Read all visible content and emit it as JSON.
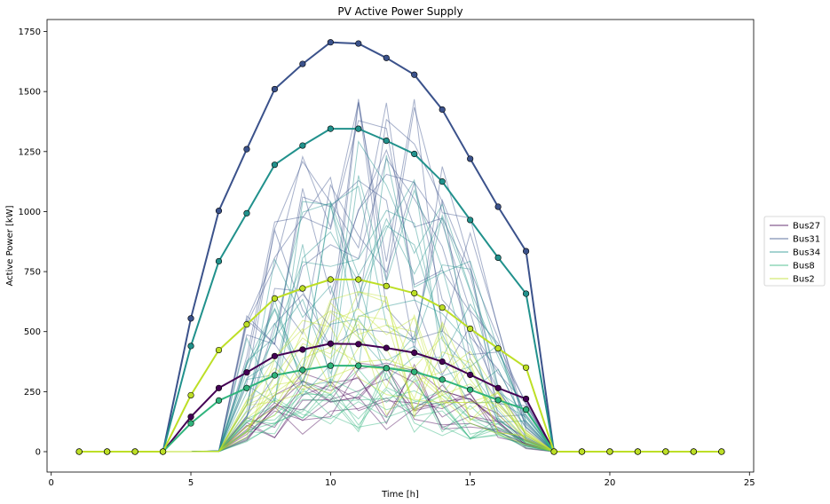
{
  "chart_data": {
    "type": "line",
    "title": "PV Active Power Supply",
    "xlabel": "Time [h]",
    "ylabel": "Active Power [kW]",
    "xlim": [
      -0.15,
      25.15
    ],
    "ylim": [
      -85,
      1800
    ],
    "xticks": [
      0,
      5,
      10,
      15,
      20,
      25
    ],
    "yticks": [
      0,
      250,
      500,
      750,
      1000,
      1250,
      1500,
      1750
    ],
    "legend": {
      "placement": "right",
      "entries": [
        "Bus27",
        "Bus31",
        "Bus34",
        "Bus8",
        "Bus2"
      ]
    },
    "x": [
      1,
      2,
      3,
      4,
      5,
      6,
      7,
      8,
      9,
      10,
      11,
      12,
      13,
      14,
      15,
      16,
      17,
      18,
      19,
      20,
      21,
      22,
      23,
      24
    ],
    "series": [
      {
        "name": "Bus27",
        "color": "#440154",
        "values": [
          0,
          0,
          0,
          0,
          145,
          265,
          330,
          398,
          425,
          450,
          448,
          432,
          412,
          375,
          320,
          265,
          220,
          0,
          0,
          0,
          0,
          0,
          0,
          0
        ]
      },
      {
        "name": "Bus31",
        "color": "#3b528b",
        "values": [
          0,
          0,
          0,
          0,
          555,
          1003,
          1260,
          1510,
          1615,
          1705,
          1700,
          1640,
          1570,
          1425,
          1220,
          1020,
          835,
          0,
          0,
          0,
          0,
          0,
          0,
          0
        ]
      },
      {
        "name": "Bus34",
        "color": "#21918c",
        "values": [
          0,
          0,
          0,
          0,
          440,
          793,
          993,
          1195,
          1275,
          1345,
          1345,
          1295,
          1240,
          1125,
          965,
          808,
          658,
          0,
          0,
          0,
          0,
          0,
          0,
          0
        ]
      },
      {
        "name": "Bus8",
        "color": "#2fb47c",
        "values": [
          0,
          0,
          0,
          0,
          118,
          213,
          265,
          318,
          340,
          358,
          358,
          348,
          332,
          300,
          258,
          215,
          175,
          0,
          0,
          0,
          0,
          0,
          0,
          0
        ]
      },
      {
        "name": "Bus2",
        "color": "#bddf26",
        "values": [
          0,
          0,
          0,
          0,
          235,
          423,
          530,
          638,
          680,
          717,
          717,
          690,
          660,
          600,
          512,
          430,
          350,
          0,
          0,
          0,
          0,
          0,
          0,
          0
        ]
      }
    ],
    "scenario_bands": [
      {
        "color": "#440154",
        "peak": 360,
        "count": 10
      },
      {
        "color": "#3b528b",
        "peak": 1400,
        "count": 12
      },
      {
        "color": "#21918c",
        "peak": 1150,
        "count": 12
      },
      {
        "color": "#2fb47c",
        "peak": 330,
        "count": 10
      },
      {
        "color": "#bddf26",
        "peak": 600,
        "count": 12
      }
    ]
  }
}
